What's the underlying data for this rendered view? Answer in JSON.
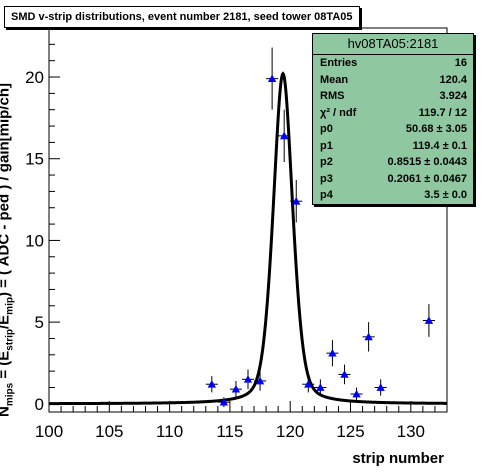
{
  "title": "SMD v-strip distributions, event number 2181, seed tower 08TA05",
  "stats": {
    "name": "hv08TA05:2181",
    "rows": [
      {
        "label": "Entries",
        "value": "16"
      },
      {
        "label": "Mean",
        "value": "120.4"
      },
      {
        "label": "RMS",
        "value": "3.924"
      },
      {
        "label": "χ² / ndf",
        "value": "119.7 / 12"
      },
      {
        "label": "p0",
        "value": "50.68 ± 3.05"
      },
      {
        "label": "p1",
        "value": "119.4 ± 0.1"
      },
      {
        "label": "p2",
        "value": "0.8515 ± 0.0443"
      },
      {
        "label": "p3",
        "value": "0.2061 ± 0.0467"
      },
      {
        "label": "p4",
        "value": "3.5 ± 0.0"
      }
    ]
  },
  "axes": {
    "xlabel": "strip number",
    "ylabel": "Nmips = (Estrip/Emip) = ( ADC - ped ) / gain[mip/ch]"
  },
  "colors": {
    "markers": "#0000ff",
    "fit": "#000000",
    "stats_bg": "#8fc7a1"
  },
  "chart_data": {
    "type": "scatter",
    "xlim": [
      100,
      133
    ],
    "ylim": [
      -0.5,
      23.0
    ],
    "xticks": [
      100,
      105,
      110,
      115,
      120,
      125,
      130
    ],
    "yticks": [
      0,
      5,
      10,
      15,
      20
    ],
    "points": [
      {
        "x": 113.5,
        "y": 1.2,
        "err": 0.5
      },
      {
        "x": 114.5,
        "y": 0.1,
        "err": 0.3
      },
      {
        "x": 115.5,
        "y": 0.9,
        "err": 0.5
      },
      {
        "x": 116.5,
        "y": 1.5,
        "err": 0.6
      },
      {
        "x": 117.5,
        "y": 1.4,
        "err": 0.6
      },
      {
        "x": 118.5,
        "y": 19.9,
        "err": 1.9
      },
      {
        "x": 119.5,
        "y": 16.4,
        "err": 1.6
      },
      {
        "x": 120.5,
        "y": 12.4,
        "err": 1.3
      },
      {
        "x": 121.5,
        "y": 1.2,
        "err": 0.5
      },
      {
        "x": 122.5,
        "y": 1.0,
        "err": 0.5
      },
      {
        "x": 123.5,
        "y": 3.1,
        "err": 0.8
      },
      {
        "x": 124.5,
        "y": 1.8,
        "err": 0.6
      },
      {
        "x": 125.5,
        "y": 0.6,
        "err": 0.4
      },
      {
        "x": 126.5,
        "y": 4.1,
        "err": 0.9
      },
      {
        "x": 127.5,
        "y": 1.0,
        "err": 0.5
      },
      {
        "x": 131.5,
        "y": 5.1,
        "err": 1.0
      }
    ],
    "fit": {
      "type": "double-gaussian plus flat",
      "p0": 50.68,
      "p1": 119.4,
      "p2": 0.8515,
      "p3": 0.2061,
      "p4": 3.5,
      "range": [
        100,
        133
      ]
    }
  }
}
